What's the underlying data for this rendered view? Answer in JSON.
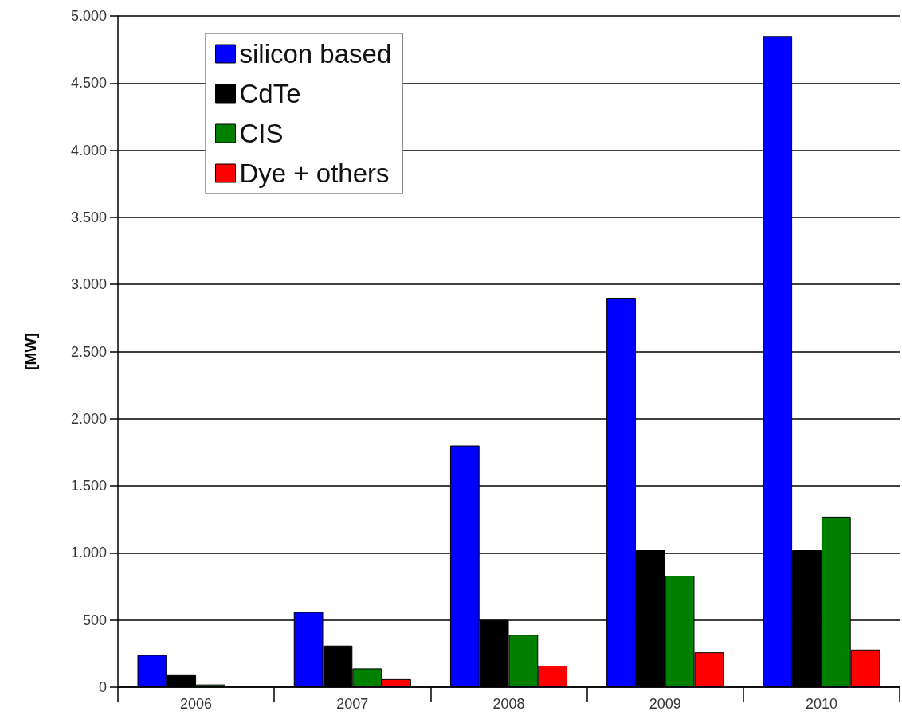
{
  "chart_data": {
    "type": "bar",
    "ylabel": "[MW]",
    "categories": [
      "2006",
      "2007",
      "2008",
      "2009",
      "2010"
    ],
    "series": [
      {
        "name": "silicon based",
        "color": "#0000ff",
        "values": [
          240,
          560,
          1800,
          2900,
          4850
        ]
      },
      {
        "name": "CdTe",
        "color": "#000000",
        "values": [
          90,
          310,
          500,
          1020,
          1020
        ]
      },
      {
        "name": "CIS",
        "color": "#008000",
        "values": [
          20,
          140,
          390,
          830,
          1270
        ]
      },
      {
        "name": "Dye + others",
        "color": "#ff0000",
        "values": [
          null,
          60,
          160,
          260,
          280
        ]
      }
    ],
    "ylim": [
      0,
      5000
    ],
    "yticks": [
      {
        "value": 0,
        "label": "0"
      },
      {
        "value": 500,
        "label": "500"
      },
      {
        "value": 1000,
        "label": "1.000"
      },
      {
        "value": 1500,
        "label": "1.500"
      },
      {
        "value": 2000,
        "label": "2.000"
      },
      {
        "value": 2500,
        "label": "2.500"
      },
      {
        "value": 3000,
        "label": "3.000"
      },
      {
        "value": 3500,
        "label": "3.500"
      },
      {
        "value": 4000,
        "label": "4.000"
      },
      {
        "value": 4500,
        "label": "4.500"
      },
      {
        "value": 5000,
        "label": "5.000"
      }
    ],
    "grid": "y",
    "legend": "top left"
  }
}
